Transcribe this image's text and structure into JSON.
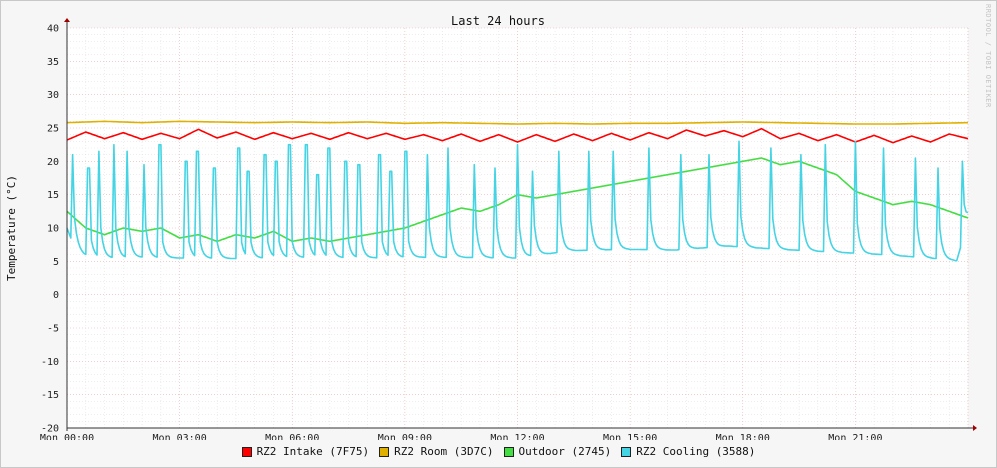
{
  "chart_data": {
    "type": "line",
    "title": "Last 24 hours",
    "ylabel": "Temperature (°C)",
    "xlabel": "",
    "watermark": "RRDTOOL / TOBI OETIKER",
    "ylim": [
      -20,
      40
    ],
    "yticks": [
      40,
      35,
      30,
      25,
      20,
      15,
      10,
      5,
      0,
      -5,
      -10,
      -15,
      -20
    ],
    "y_tick_labels": [
      "40",
      "35",
      "30",
      "25",
      "20",
      "15",
      "10",
      "5",
      "0",
      "-5",
      "-10",
      "-15",
      "-20"
    ],
    "x_range_hours": [
      0,
      24
    ],
    "x_ticks_hours": [
      0,
      3,
      6,
      9,
      12,
      15,
      18,
      21
    ],
    "x_tick_labels": [
      "Mon 00:00",
      "Mon 03:00",
      "Mon 06:00",
      "Mon 09:00",
      "Mon 12:00",
      "Mon 15:00",
      "Mon 18:00",
      "Mon 21:00"
    ],
    "grid": true,
    "legend_position": "bottom",
    "series": [
      {
        "name": "RZ2 Intake (7F75)",
        "color": "#ff0000",
        "x": [
          0,
          0.5,
          1,
          1.5,
          2,
          2.5,
          3,
          3.5,
          4,
          4.5,
          5,
          5.5,
          6,
          6.5,
          7,
          7.5,
          8,
          8.5,
          9,
          9.5,
          10,
          10.5,
          11,
          11.5,
          12,
          12.5,
          13,
          13.5,
          14,
          14.5,
          15,
          15.5,
          16,
          16.5,
          17,
          17.5,
          18,
          18.5,
          19,
          19.5,
          20,
          20.5,
          21,
          21.5,
          22,
          22.5,
          23,
          23.5,
          24
        ],
        "y": [
          23.2,
          24.4,
          23.4,
          24.3,
          23.3,
          24.2,
          23.4,
          24.8,
          23.5,
          24.4,
          23.3,
          24.3,
          23.4,
          24.2,
          23.3,
          24.3,
          23.4,
          24.2,
          23.3,
          24.0,
          23.1,
          24.1,
          23.0,
          24.0,
          22.9,
          24.0,
          23.0,
          24.1,
          23.1,
          24.2,
          23.2,
          24.3,
          23.4,
          24.7,
          23.8,
          24.6,
          23.7,
          24.9,
          23.4,
          24.2,
          23.1,
          24.0,
          22.9,
          23.9,
          22.8,
          23.8,
          22.9,
          24.1,
          23.4
        ]
      },
      {
        "name": "RZ2 Room (3D7C)",
        "color": "#e0b000",
        "x": [
          0,
          1,
          2,
          3,
          4,
          5,
          6,
          7,
          8,
          9,
          10,
          11,
          12,
          13,
          14,
          15,
          16,
          17,
          18,
          19,
          20,
          21,
          22,
          23,
          24
        ],
        "y": [
          25.8,
          26.0,
          25.8,
          26.0,
          25.9,
          25.8,
          25.9,
          25.8,
          25.9,
          25.7,
          25.8,
          25.7,
          25.6,
          25.7,
          25.6,
          25.7,
          25.7,
          25.8,
          25.9,
          25.8,
          25.7,
          25.6,
          25.6,
          25.7,
          25.8
        ]
      },
      {
        "name": "Outdoor (2745)",
        "color": "#44dd44",
        "x": [
          0,
          0.5,
          1,
          1.5,
          2,
          2.5,
          3,
          3.5,
          4,
          4.5,
          5,
          5.5,
          6,
          6.5,
          7,
          7.5,
          8,
          8.5,
          9,
          9.5,
          10,
          10.5,
          11,
          11.5,
          12,
          12.5,
          13,
          13.5,
          14,
          14.5,
          15,
          15.5,
          16,
          16.5,
          17,
          17.5,
          18,
          18.5,
          19,
          19.5,
          20,
          20.5,
          21,
          21.5,
          22,
          22.5,
          23,
          23.5,
          24
        ],
        "y": [
          12.5,
          10.0,
          9.0,
          10.0,
          9.5,
          10.0,
          8.5,
          9.0,
          8.0,
          9.0,
          8.5,
          9.5,
          8.0,
          8.5,
          8.0,
          8.5,
          9.0,
          9.5,
          10.0,
          11.0,
          12.0,
          13.0,
          12.5,
          13.5,
          15.0,
          14.5,
          15.0,
          15.5,
          16.0,
          16.5,
          17.0,
          17.5,
          18.0,
          18.5,
          19.0,
          19.5,
          20.0,
          20.5,
          19.5,
          20.0,
          19.0,
          18.0,
          15.5,
          14.5,
          13.5,
          14.0,
          13.5,
          12.5,
          11.5
        ]
      },
      {
        "name": "RZ2 Cooling (3588)",
        "color": "#44d4e4",
        "x": [
          0,
          0.2,
          0.45,
          0.75,
          1.1,
          1.5,
          2.0,
          2.6,
          3.3,
          4.2,
          5.3,
          6.5,
          7.8,
          9.2,
          10.6,
          12.0,
          13.4,
          14.8,
          16.2,
          17.6,
          19.0,
          20.4,
          21.8,
          23.2,
          23.7,
          24
        ],
        "y": [
          10.0,
          7.0,
          6.0,
          5.6,
          5.5,
          5.5,
          5.6,
          5.5,
          5.5,
          5.4,
          5.5,
          5.6,
          5.5,
          5.6,
          5.6,
          5.5,
          6.6,
          6.8,
          6.7,
          7.3,
          6.8,
          6.4,
          6.0,
          5.4,
          5.1,
          11.0
        ],
        "spikes_x": [
          0.15,
          0.55,
          0.85,
          1.25,
          1.6,
          2.05,
          2.45,
          3.15,
          3.45,
          3.9,
          4.55,
          4.8,
          5.25,
          5.55,
          5.9,
          6.35,
          6.65,
          6.95,
          7.4,
          7.75,
          8.3,
          8.6,
          9.0,
          9.6,
          10.15,
          10.85,
          11.4,
          12.0,
          12.4,
          13.1,
          13.9,
          14.55,
          15.5,
          16.35,
          17.1,
          17.9,
          18.75,
          19.55,
          20.2,
          21.0,
          21.75,
          22.6,
          23.2,
          23.85
        ],
        "spikes_y": [
          21.0,
          19.0,
          21.5,
          22.5,
          21.5,
          19.5,
          22.5,
          20.0,
          21.5,
          19.0,
          22.0,
          18.5,
          21.0,
          20.0,
          22.5,
          22.5,
          18.0,
          22.0,
          20.0,
          19.5,
          21.0,
          18.5,
          21.5,
          21.0,
          22.0,
          19.5,
          19.0,
          22.5,
          18.5,
          21.5,
          21.5,
          21.5,
          22.0,
          21.0,
          21.0,
          23.0,
          22.0,
          21.0,
          22.5,
          23.0,
          22.0,
          20.5,
          19.0,
          20.0
        ]
      }
    ]
  },
  "legend": [
    {
      "label": "RZ2 Intake (7F75)",
      "color": "#ff0000"
    },
    {
      "label": "RZ2 Room (3D7C)",
      "color": "#e0b000"
    },
    {
      "label": "Outdoor (2745)",
      "color": "#44dd44"
    },
    {
      "label": "RZ2 Cooling (3588)",
      "color": "#44d4e4"
    }
  ]
}
